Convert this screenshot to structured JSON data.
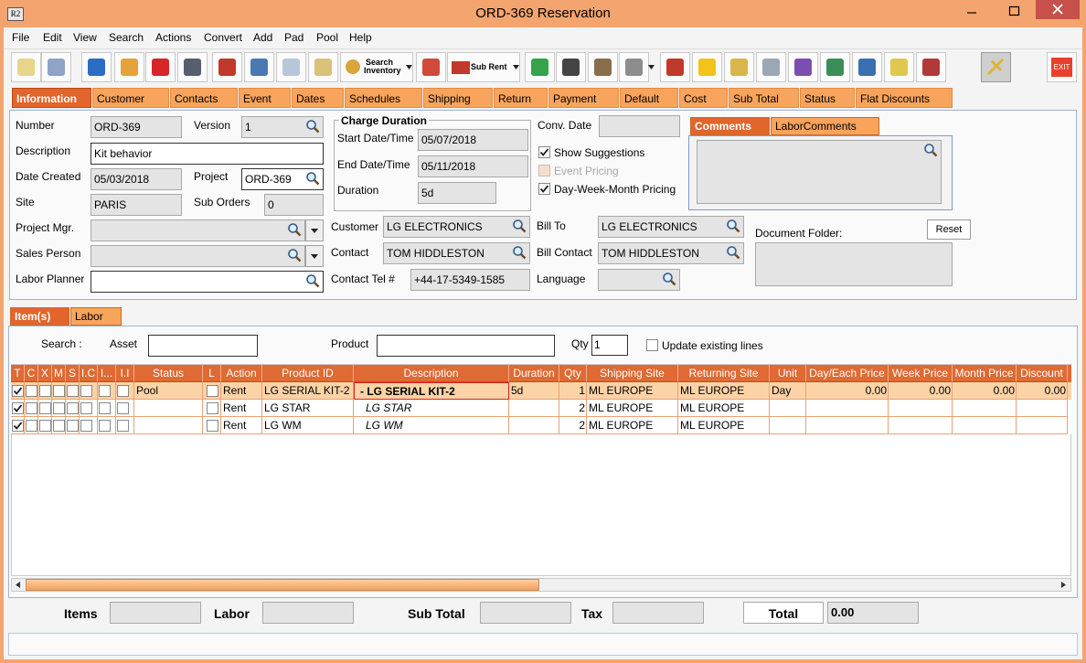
{
  "window": {
    "icon": "R2",
    "title": "ORD-369 Reservation"
  },
  "menu": [
    "File",
    "Edit",
    "View",
    "Search",
    "Actions",
    "Convert",
    "Add",
    "Pad",
    "Pool",
    "Help"
  ],
  "toolbar": {
    "search_inventory": [
      "Search",
      "Inventory"
    ],
    "sub_rent": "Sub Rent",
    "exit": "EXIT"
  },
  "tabs": [
    "Information",
    "Customer",
    "Contacts",
    "Event",
    "Dates",
    "Schedules",
    "Shipping",
    "Return",
    "Payment",
    "Default",
    "Cost",
    "Sub Total",
    "Status",
    "Flat Discounts"
  ],
  "info": {
    "number": {
      "label": "Number",
      "value": "ORD-369"
    },
    "version": {
      "label": "Version",
      "value": "1"
    },
    "description": {
      "label": "Description",
      "value": "Kit behavior"
    },
    "date_created": {
      "label": "Date Created",
      "value": "05/03/2018"
    },
    "project": {
      "label": "Project",
      "value": "ORD-369"
    },
    "site": {
      "label": "Site",
      "value": "PARIS"
    },
    "sub_orders": {
      "label": "Sub Orders",
      "value": "0"
    },
    "project_mgr": {
      "label": "Project Mgr."
    },
    "sales_person": {
      "label": "Sales Person"
    },
    "labor_planner": {
      "label": "Labor Planner"
    },
    "customer": {
      "label": "Customer",
      "value": "LG ELECTRONICS"
    },
    "contact": {
      "label": "Contact",
      "value": "TOM HIDDLESTON"
    },
    "contact_tel": {
      "label": "Contact Tel #",
      "value": "+44-17-5349-1585"
    },
    "conv_date": {
      "label": "Conv. Date"
    },
    "bill_to": {
      "label": "Bill To",
      "value": "LG ELECTRONICS"
    },
    "bill_contact": {
      "label": "Bill Contact",
      "value": "TOM HIDDLESTON"
    },
    "language": {
      "label": "Language"
    },
    "charge_duration": {
      "title": "Charge Duration",
      "start": {
        "label": "Start Date/Time",
        "value": "05/07/2018"
      },
      "end": {
        "label": "End Date/Time",
        "value": "05/11/2018"
      },
      "duration": {
        "label": "Duration",
        "value": "5d"
      }
    },
    "show_suggestions": {
      "label": "Show Suggestions",
      "checked": true,
      "enabled": true
    },
    "event_pricing": {
      "label": "Event Pricing",
      "checked": false,
      "enabled": false
    },
    "day_week_month_pricing": {
      "label": "Day-Week-Month Pricing",
      "checked": true,
      "enabled": true
    },
    "comment_tabs": [
      "Comments",
      "LaborComments"
    ],
    "document_folder": "Document Folder:",
    "reset": "Reset"
  },
  "item_tabs": [
    "Item(s)",
    "Labor"
  ],
  "search": {
    "label": "Search :",
    "asset": "Asset",
    "product": "Product",
    "qty_label": "Qty",
    "qty": "1",
    "update": "Update existing lines",
    "update_checked": false
  },
  "table": {
    "columns": [
      "T",
      "C",
      "X",
      "M",
      "S",
      "I.C",
      "I...",
      "I.I",
      "Status",
      "L",
      "Action",
      "Product ID",
      "Description",
      "Duration",
      "Qty",
      "Shipping Site",
      "Returning Site",
      "Unit",
      "Day/Each Price",
      "Week Price",
      "Month Price",
      "Discount"
    ],
    "rows": [
      {
        "flags": [
          true,
          false,
          false,
          false,
          false,
          false,
          false,
          false
        ],
        "status": "Pool",
        "locked": false,
        "action": "Rent",
        "product_id": "LG SERIAL KIT-2",
        "description": "-  LG SERIAL KIT-2",
        "duration": "5d",
        "qty": 1,
        "shipping_site": "ML EUROPE",
        "returning_site": "ML EUROPE",
        "unit": "Day",
        "day_price": "0.00",
        "week_price": "0.00",
        "month_price": "0.00",
        "discount": "0.00"
      },
      {
        "flags": [
          true,
          false,
          false,
          false,
          false,
          false,
          false,
          false
        ],
        "locked": false,
        "action": "Rent",
        "product_id": "LG STAR",
        "description": "LG STAR",
        "qty": 2,
        "shipping_site": "ML EUROPE",
        "returning_site": "ML EUROPE"
      },
      {
        "flags": [
          true,
          false,
          false,
          false,
          false,
          false,
          false,
          false
        ],
        "locked": false,
        "action": "Rent",
        "product_id": "LG WM",
        "description": "LG WM",
        "qty": 2,
        "shipping_site": "ML EUROPE",
        "returning_site": "ML EUROPE"
      }
    ]
  },
  "footer": {
    "items": "Items",
    "labor": "Labor",
    "sub_total": "Sub Total",
    "tax": "Tax",
    "total": "Total",
    "total_value": "0.00"
  }
}
